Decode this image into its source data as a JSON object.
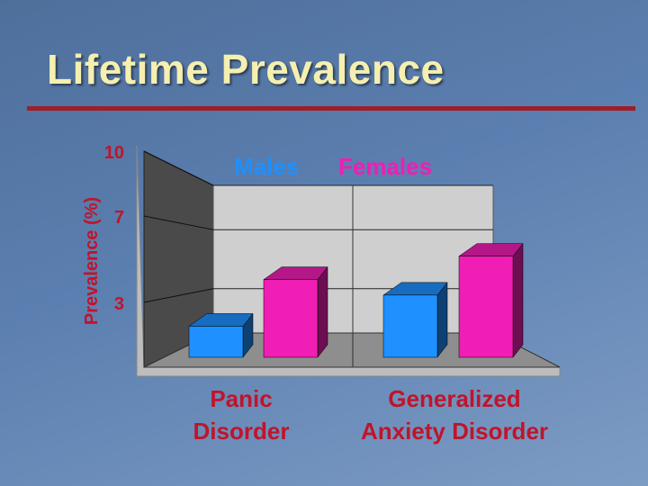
{
  "title": "Lifetime Prevalence",
  "colors": {
    "title": "#f5efb0",
    "rule": "#9c1f2a",
    "males": "#1e90ff",
    "females": "#f01eb4",
    "axis_text": "#c0142a"
  },
  "chart_data": {
    "type": "bar",
    "title": "",
    "xlabel": "",
    "ylabel": "Prevalence (%)",
    "ylim": [
      0,
      10
    ],
    "yticks": [
      "3",
      "7",
      "10"
    ],
    "categories": [
      "Panic\nDisorder",
      "Generalized\nAnxiety  Disorder"
    ],
    "series": [
      {
        "name": "Males",
        "values": [
          2,
          4
        ]
      },
      {
        "name": "Females",
        "values": [
          5,
          6.5
        ]
      }
    ],
    "legend": "top",
    "grid": true,
    "three_d": true
  }
}
